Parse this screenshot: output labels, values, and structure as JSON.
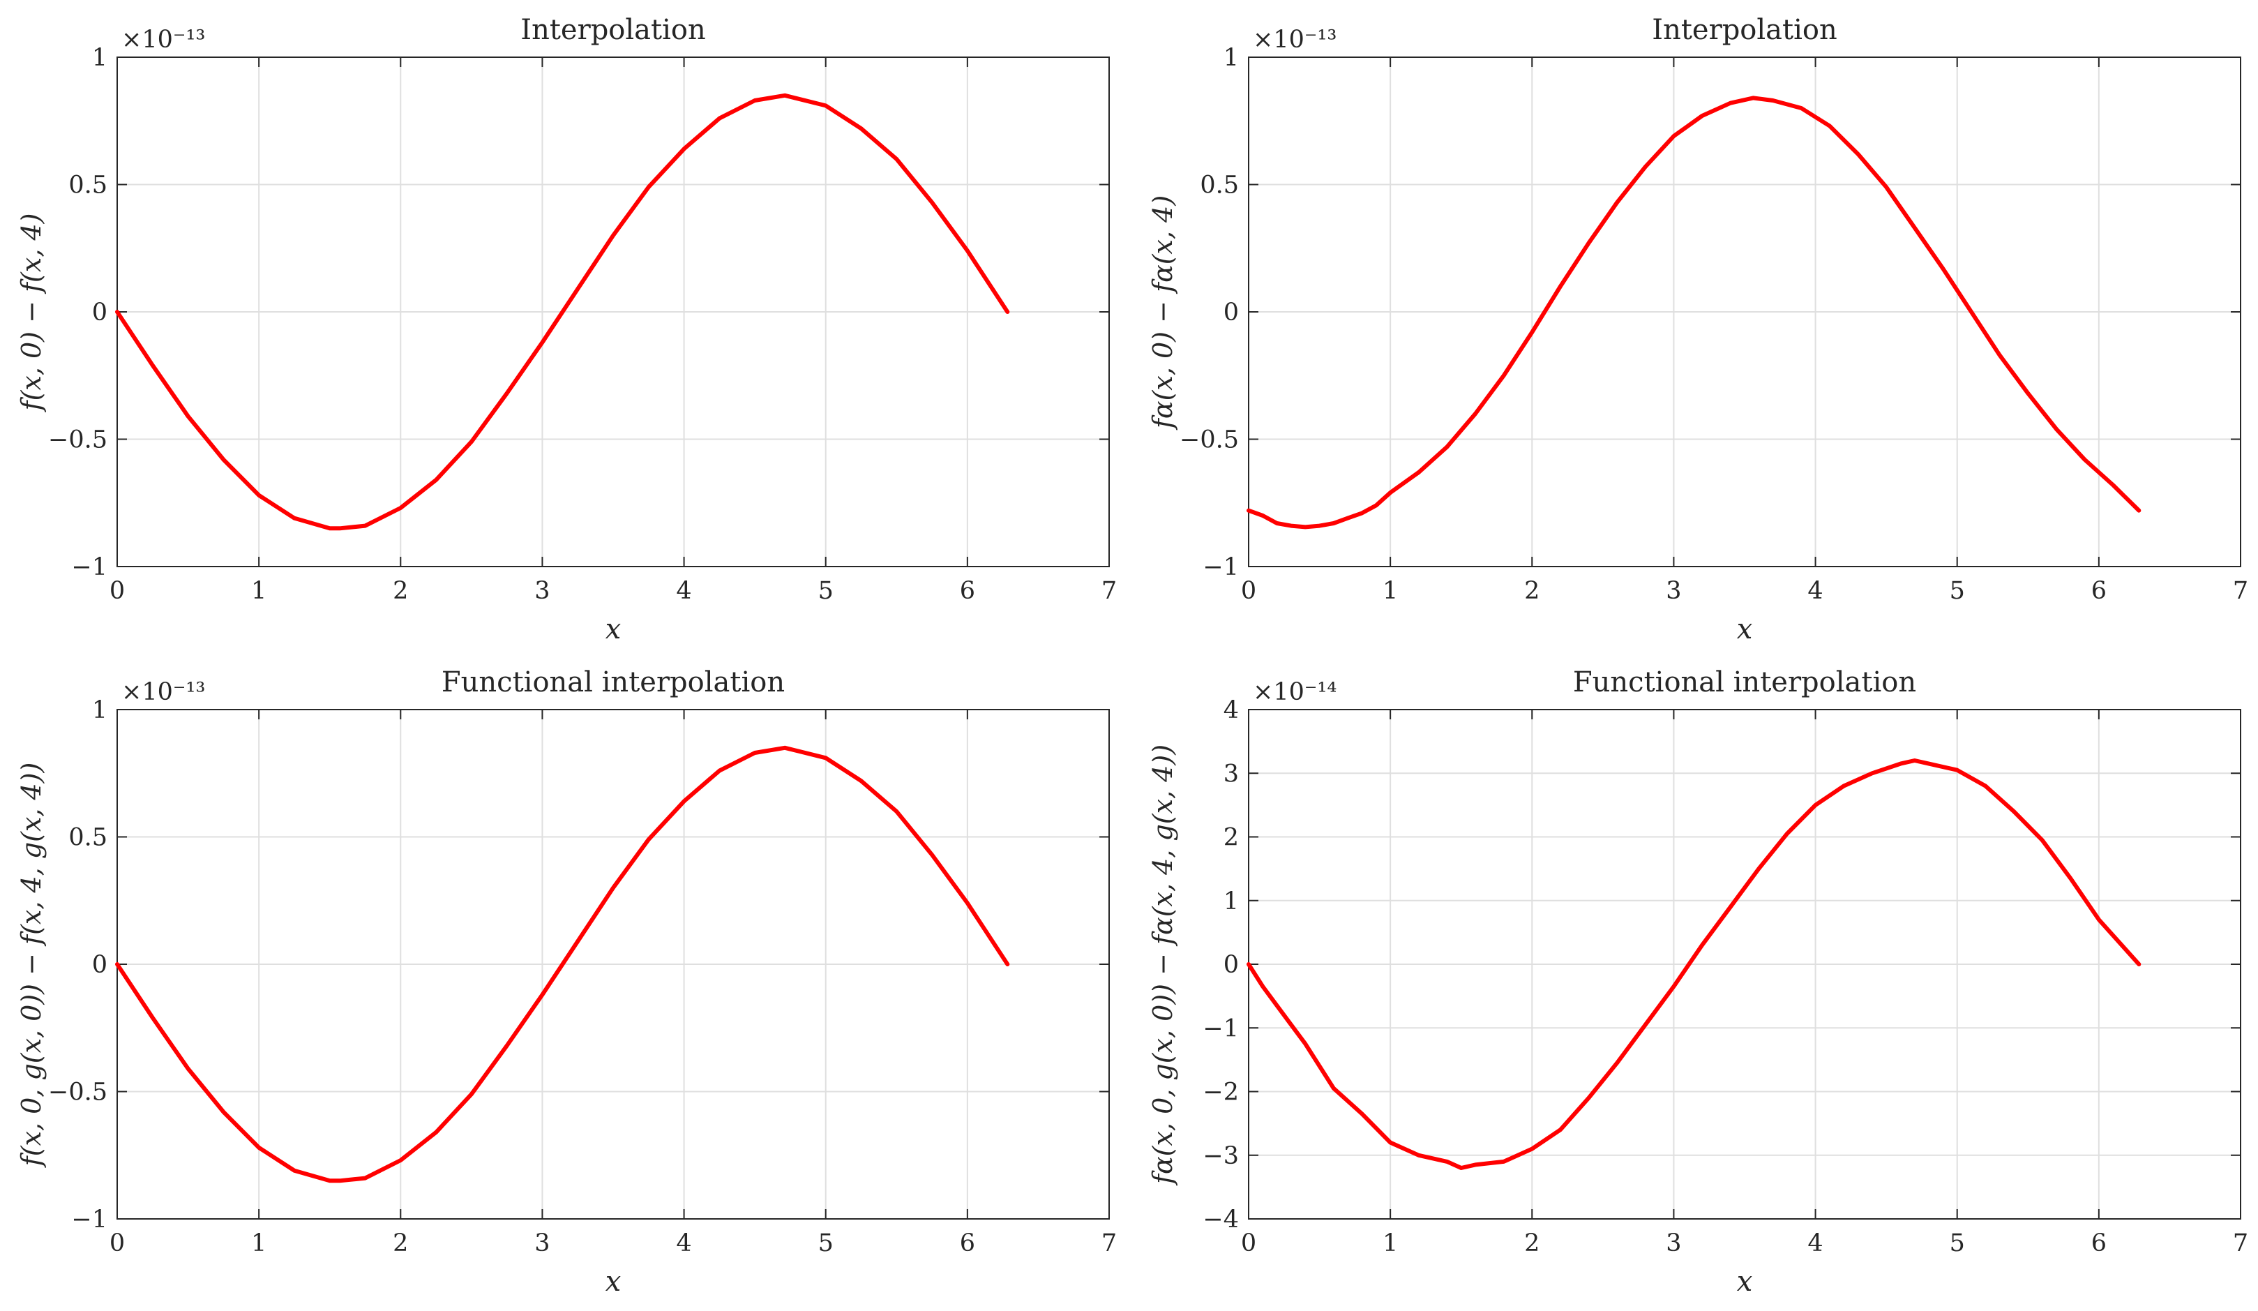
{
  "figure": {
    "series_color": "#ff0000",
    "grid_color": "#dfdfdf",
    "axis_color": "#262626"
  },
  "chart_data": [
    {
      "type": "line",
      "title": "Interpolation",
      "xlabel": "x",
      "ylabel": "f(x, 0) − f(x, 4)",
      "scale_label": "×10⁻¹³",
      "xlim": [
        0,
        7
      ],
      "ylim": [
        -1,
        1
      ],
      "grid": true,
      "x_ticks": [
        0,
        1,
        2,
        3,
        4,
        5,
        6,
        7
      ],
      "x_tick_labels": [
        "0",
        "1",
        "2",
        "3",
        "4",
        "5",
        "6",
        "7"
      ],
      "y_ticks": [
        -1,
        -0.5,
        0,
        0.5,
        1
      ],
      "y_tick_labels": [
        "−1",
        "−0.5",
        "0",
        "0.5",
        "1"
      ],
      "series": [
        {
          "name": "f(x,0) - f(x,4)",
          "x": [
            0,
            0.25,
            0.5,
            0.75,
            1,
            1.25,
            1.5,
            1.571,
            1.75,
            2,
            2.25,
            2.5,
            2.75,
            3,
            3.25,
            3.5,
            3.75,
            4,
            4.25,
            4.5,
            4.712,
            5,
            5.25,
            5.5,
            5.75,
            6,
            6.283
          ],
          "y": [
            0,
            -0.21,
            -0.41,
            -0.58,
            -0.72,
            -0.81,
            -0.85,
            -0.85,
            -0.84,
            -0.77,
            -0.66,
            -0.51,
            -0.32,
            -0.12,
            0.09,
            0.3,
            0.49,
            0.64,
            0.76,
            0.83,
            0.85,
            0.81,
            0.72,
            0.6,
            0.43,
            0.24,
            0
          ]
        }
      ]
    },
    {
      "type": "line",
      "title": "Interpolation",
      "xlabel": "x",
      "ylabel": "fα(x, 0) − fα(x, 4)",
      "scale_label": "×10⁻¹³",
      "xlim": [
        0,
        7
      ],
      "ylim": [
        -1,
        1
      ],
      "grid": true,
      "x_ticks": [
        0,
        1,
        2,
        3,
        4,
        5,
        6,
        7
      ],
      "x_tick_labels": [
        "0",
        "1",
        "2",
        "3",
        "4",
        "5",
        "6",
        "7"
      ],
      "y_ticks": [
        -1,
        -0.5,
        0,
        0.5,
        1
      ],
      "y_tick_labels": [
        "−1",
        "−0.5",
        "0",
        "0.5",
        "1"
      ],
      "series": [
        {
          "name": "f_alpha(x,0) - f_alpha(x,4)",
          "x": [
            0,
            0.1,
            0.2,
            0.3,
            0.4,
            0.5,
            0.6,
            0.7,
            0.8,
            0.9,
            1.0,
            1.2,
            1.4,
            1.6,
            1.8,
            2.0,
            2.2,
            2.4,
            2.6,
            2.8,
            3.0,
            3.2,
            3.4,
            3.56,
            3.7,
            3.9,
            4.1,
            4.3,
            4.5,
            4.7,
            4.9,
            5.1,
            5.3,
            5.5,
            5.7,
            5.9,
            6.1,
            6.283
          ],
          "y": [
            -0.78,
            -0.8,
            -0.83,
            -0.84,
            -0.845,
            -0.84,
            -0.83,
            -0.81,
            -0.79,
            -0.76,
            -0.71,
            -0.63,
            -0.53,
            -0.4,
            -0.25,
            -0.08,
            0.1,
            0.27,
            0.43,
            0.57,
            0.69,
            0.77,
            0.82,
            0.84,
            0.83,
            0.8,
            0.73,
            0.62,
            0.49,
            0.33,
            0.17,
            0.0,
            -0.17,
            -0.32,
            -0.46,
            -0.58,
            -0.68,
            -0.78
          ]
        }
      ]
    },
    {
      "type": "line",
      "title": "Functional interpolation",
      "xlabel": "x",
      "ylabel": "f(x, 0, g(x, 0)) − f(x, 4, g(x, 4))",
      "scale_label": "×10⁻¹³",
      "xlim": [
        0,
        7
      ],
      "ylim": [
        -1,
        1
      ],
      "grid": true,
      "x_ticks": [
        0,
        1,
        2,
        3,
        4,
        5,
        6,
        7
      ],
      "x_tick_labels": [
        "0",
        "1",
        "2",
        "3",
        "4",
        "5",
        "6",
        "7"
      ],
      "y_ticks": [
        -1,
        -0.5,
        0,
        0.5,
        1
      ],
      "y_tick_labels": [
        "−1",
        "−0.5",
        "0",
        "0.5",
        "1"
      ],
      "series": [
        {
          "name": "f(x,0,g(x,0)) - f(x,4,g(x,4))",
          "x": [
            0,
            0.25,
            0.5,
            0.75,
            1,
            1.25,
            1.5,
            1.571,
            1.75,
            2,
            2.25,
            2.5,
            2.75,
            3,
            3.25,
            3.5,
            3.75,
            4,
            4.25,
            4.5,
            4.712,
            5,
            5.25,
            5.5,
            5.75,
            6,
            6.283
          ],
          "y": [
            0,
            -0.21,
            -0.41,
            -0.58,
            -0.72,
            -0.81,
            -0.85,
            -0.85,
            -0.84,
            -0.77,
            -0.66,
            -0.51,
            -0.32,
            -0.12,
            0.09,
            0.3,
            0.49,
            0.64,
            0.76,
            0.83,
            0.85,
            0.81,
            0.72,
            0.6,
            0.43,
            0.24,
            0
          ]
        }
      ]
    },
    {
      "type": "line",
      "title": "Functional interpolation",
      "xlabel": "x",
      "ylabel": "fα(x, 0, g(x, 0)) − fα(x, 4, g(x, 4))",
      "scale_label": "×10⁻¹⁴",
      "xlim": [
        0,
        7
      ],
      "ylim": [
        -4,
        4
      ],
      "grid": true,
      "x_ticks": [
        0,
        1,
        2,
        3,
        4,
        5,
        6,
        7
      ],
      "x_tick_labels": [
        "0",
        "1",
        "2",
        "3",
        "4",
        "5",
        "6",
        "7"
      ],
      "y_ticks": [
        -4,
        -3,
        -2,
        -1,
        0,
        1,
        2,
        3,
        4
      ],
      "y_tick_labels": [
        "−4",
        "−3",
        "−2",
        "−1",
        "0",
        "1",
        "2",
        "3",
        "4"
      ],
      "series": [
        {
          "name": "f_alpha(x,0,g(x,0)) - f_alpha(x,4,g(x,4))",
          "x": [
            0,
            0.1,
            0.2,
            0.3,
            0.4,
            0.5,
            0.6,
            0.8,
            1.0,
            1.2,
            1.4,
            1.5,
            1.6,
            1.8,
            2.0,
            2.2,
            2.4,
            2.6,
            2.8,
            3.0,
            3.2,
            3.4,
            3.6,
            3.8,
            4.0,
            4.2,
            4.4,
            4.6,
            4.7,
            4.8,
            5.0,
            5.2,
            5.4,
            5.6,
            5.8,
            6.0,
            6.283
          ],
          "y": [
            0,
            -0.35,
            -0.65,
            -0.95,
            -1.25,
            -1.6,
            -1.95,
            -2.35,
            -2.8,
            -3.0,
            -3.1,
            -3.2,
            -3.15,
            -3.1,
            -2.9,
            -2.6,
            -2.1,
            -1.55,
            -0.95,
            -0.35,
            0.3,
            0.9,
            1.5,
            2.05,
            2.5,
            2.8,
            3.0,
            3.15,
            3.2,
            3.15,
            3.05,
            2.8,
            2.4,
            1.95,
            1.35,
            0.7,
            0
          ]
        }
      ]
    }
  ]
}
